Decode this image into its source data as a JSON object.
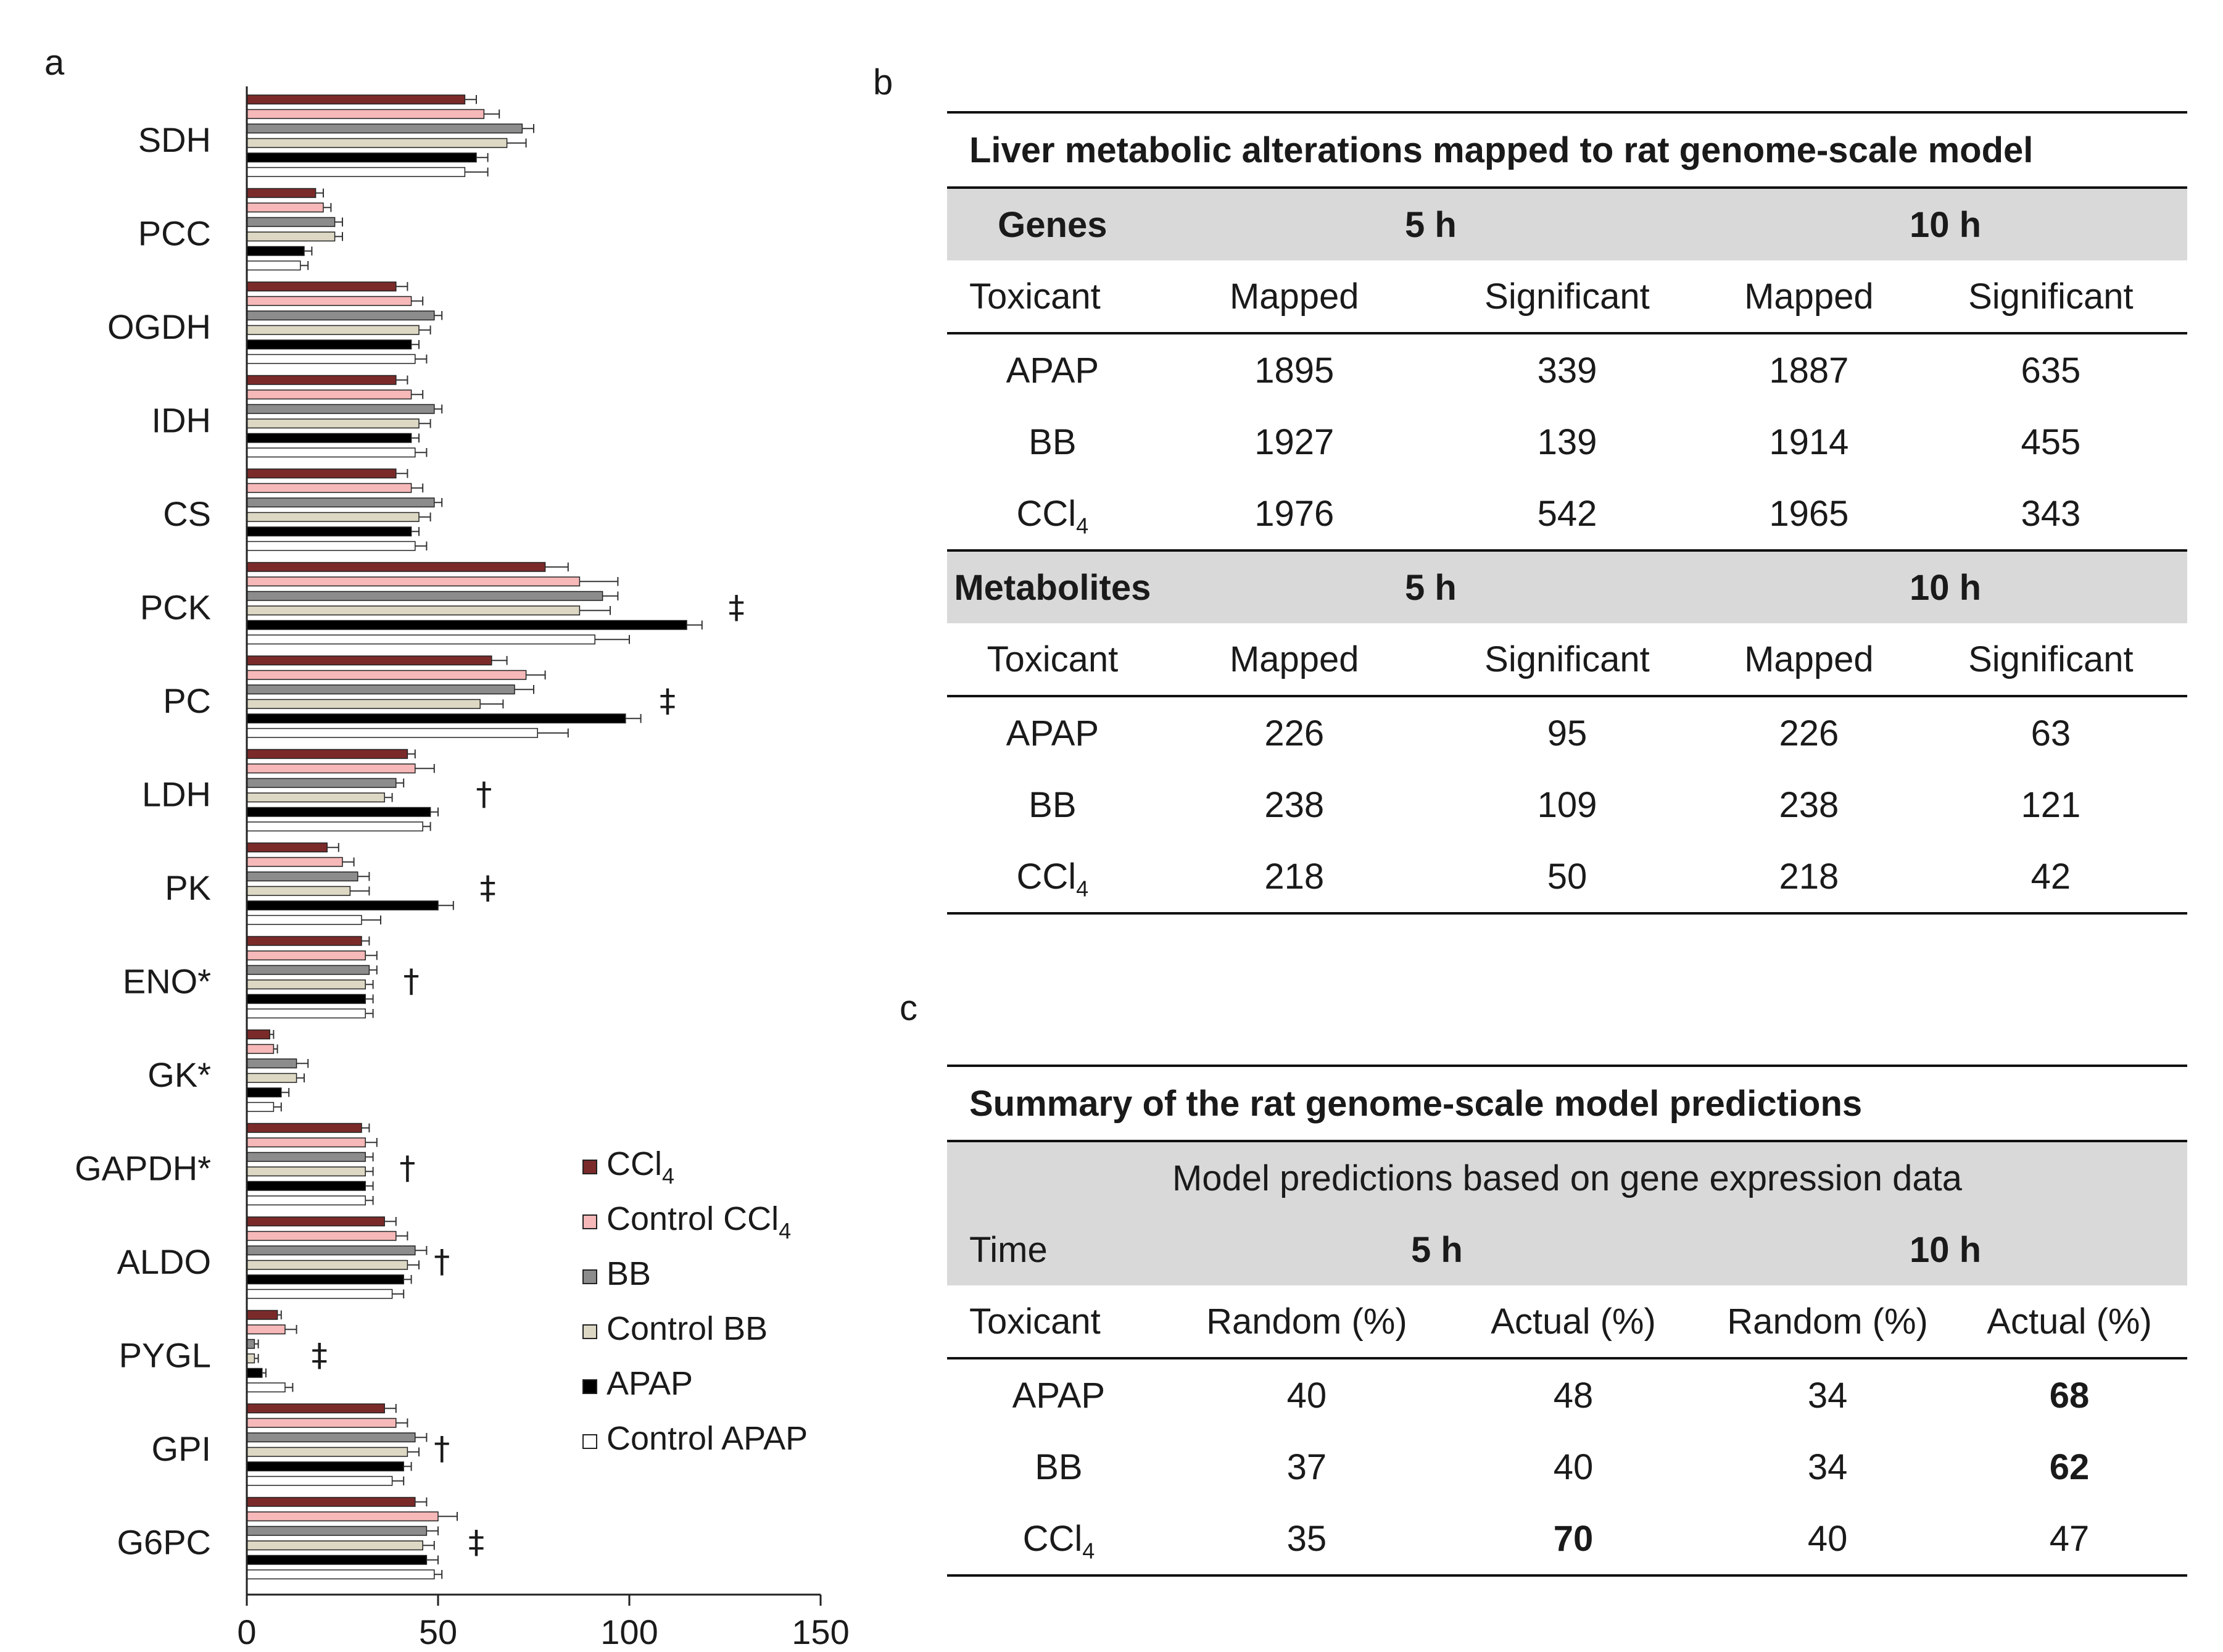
{
  "panel_labels": {
    "a": "a",
    "b": "b",
    "c": "c"
  },
  "chart_data": {
    "type": "bar",
    "orientation": "horizontal",
    "categories": [
      "SDH",
      "PCC",
      "OGDH",
      "IDH",
      "CS",
      "PCK",
      "PC",
      "LDH",
      "PK",
      "ENO*",
      "GK*",
      "GAPDH*",
      "ALDO",
      "PYGL",
      "GPI",
      "G6PC"
    ],
    "series": [
      {
        "name": "CCl4",
        "color": "#7b2a2a",
        "values": [
          57,
          18,
          39,
          39,
          39,
          78,
          64,
          42,
          21,
          30,
          6,
          30,
          36,
          8,
          36,
          44
        ],
        "errors": [
          3,
          2,
          3,
          3,
          3,
          6,
          4,
          2,
          3,
          2,
          1,
          2,
          3,
          1,
          3,
          3
        ]
      },
      {
        "name": "Control CCl4",
        "color": "#f6b8b8",
        "values": [
          62,
          20,
          43,
          43,
          43,
          87,
          73,
          44,
          25,
          31,
          7,
          31,
          39,
          10,
          39,
          50
        ],
        "errors": [
          4,
          2,
          3,
          3,
          3,
          10,
          5,
          5,
          3,
          3,
          1,
          3,
          3,
          3,
          3,
          5
        ]
      },
      {
        "name": "BB",
        "color": "#8c8c8c",
        "values": [
          72,
          23,
          49,
          49,
          49,
          93,
          70,
          39,
          29,
          32,
          13,
          31,
          44,
          2,
          44,
          47
        ],
        "errors": [
          3,
          2,
          2,
          2,
          2,
          4,
          5,
          2,
          3,
          2,
          3,
          2,
          3,
          1,
          3,
          3
        ]
      },
      {
        "name": "Control BB",
        "color": "#ddd8c4",
        "values": [
          68,
          23,
          45,
          45,
          45,
          87,
          61,
          36,
          27,
          31,
          13,
          31,
          42,
          2,
          42,
          46
        ],
        "errors": [
          5,
          2,
          3,
          3,
          3,
          8,
          6,
          2,
          5,
          2,
          2,
          2,
          3,
          1,
          3,
          3
        ]
      },
      {
        "name": "APAP",
        "color": "#000000",
        "values": [
          60,
          15,
          43,
          43,
          43,
          115,
          99,
          48,
          50,
          31,
          9,
          31,
          41,
          4,
          41,
          47
        ],
        "errors": [
          3,
          2,
          2,
          2,
          2,
          4,
          4,
          2,
          4,
          2,
          2,
          2,
          2,
          1,
          2,
          3
        ]
      },
      {
        "name": "Control APAP",
        "color": "#ffffff",
        "values": [
          57,
          14,
          44,
          44,
          44,
          91,
          76,
          46,
          30,
          31,
          7,
          31,
          38,
          10,
          38,
          49
        ],
        "errors": [
          6,
          2,
          3,
          3,
          3,
          9,
          8,
          2,
          5,
          2,
          2,
          2,
          3,
          2,
          3,
          2
        ]
      }
    ],
    "annotations": [
      {
        "category": "PCK",
        "symbol": "‡",
        "x": 128
      },
      {
        "category": "PC",
        "symbol": "‡",
        "x": 110
      },
      {
        "category": "LDH",
        "symbol": "†",
        "x": 62
      },
      {
        "category": "PK",
        "symbol": "‡",
        "x": 63
      },
      {
        "category": "ENO*",
        "symbol": "†",
        "x": 43
      },
      {
        "category": "GAPDH*",
        "symbol": "†",
        "x": 42
      },
      {
        "category": "ALDO",
        "symbol": "†",
        "x": 51
      },
      {
        "category": "PYGL",
        "symbol": "‡",
        "x": 19
      },
      {
        "category": "GPI",
        "symbol": "†",
        "x": 51
      },
      {
        "category": "G6PC",
        "symbol": "‡",
        "x": 60
      }
    ],
    "xlim": [
      0,
      150
    ],
    "xticks": [
      "0",
      "50",
      "100",
      "150"
    ],
    "xlabel": "",
    "ylabel": "",
    "title": "",
    "legend_position": "bottom-right"
  },
  "table_b": {
    "title": "Liver metabolic alterations mapped to rat genome-scale model",
    "genes_header": {
      "label": "Genes",
      "t1": "5 h",
      "t2": "10 h"
    },
    "subheader": [
      "Toxicant",
      "Mapped",
      "Significant",
      "Mapped",
      "Significant"
    ],
    "gene_rows": [
      {
        "name": "APAP",
        "sub": "",
        "c1": "1895",
        "c2": "339",
        "c3": "1887",
        "c4": "635"
      },
      {
        "name": "BB",
        "sub": "",
        "c1": "1927",
        "c2": "139",
        "c3": "1914",
        "c4": "455"
      },
      {
        "name": "CCl",
        "sub": "4",
        "c1": "1976",
        "c2": "542",
        "c3": "1965",
        "c4": "343"
      }
    ],
    "metabolites_header": {
      "label": "Metabolites",
      "t1": "5 h",
      "t2": "10 h"
    },
    "metabolite_rows": [
      {
        "name": "APAP",
        "sub": "",
        "c1": "226",
        "c2": "95",
        "c3": "226",
        "c4": "63"
      },
      {
        "name": "BB",
        "sub": "",
        "c1": "238",
        "c2": "109",
        "c3": "238",
        "c4": "121"
      },
      {
        "name": "CCl",
        "sub": "4",
        "c1": "218",
        "c2": "50",
        "c3": "218",
        "c4": "42"
      }
    ]
  },
  "table_c": {
    "title": "Summary of the rat genome-scale model predictions",
    "subtitle": "Model predictions based on gene expression data",
    "time_header": {
      "label": "Time",
      "t1": "5 h",
      "t2": "10 h"
    },
    "subheader": [
      "Toxicant",
      "Random (%)",
      "Actual (%)",
      "Random (%)",
      "Actual (%)"
    ],
    "rows": [
      {
        "name": "APAP",
        "sub": "",
        "c1": "40",
        "c2": "48",
        "c3": "34",
        "c4": "68",
        "bold": [
          false,
          false,
          false,
          true
        ]
      },
      {
        "name": "BB",
        "sub": "",
        "c1": "37",
        "c2": "40",
        "c3": "34",
        "c4": "62",
        "bold": [
          false,
          false,
          false,
          true
        ]
      },
      {
        "name": "CCl",
        "sub": "4",
        "c1": "35",
        "c2": "70",
        "c3": "40",
        "c4": "47",
        "bold": [
          false,
          true,
          false,
          false
        ]
      }
    ]
  }
}
